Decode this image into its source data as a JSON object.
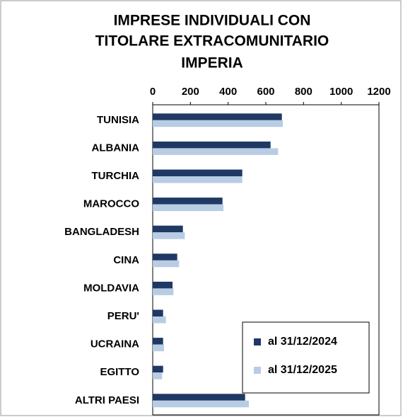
{
  "chart_data": {
    "type": "bar",
    "orientation": "horizontal",
    "title": [
      "IMPRESE INDIVIDUALI CON",
      "TITOLARE  EXTRACOMUNITARIO",
      "IMPERIA"
    ],
    "categories": [
      "TUNISIA",
      "ALBANIA",
      "TURCHIA",
      "MAROCCO",
      "BANGLADESH",
      "CINA",
      "MOLDAVIA",
      "PERU'",
      "UCRAINA",
      "EGITTO",
      "ALTRI PAESI"
    ],
    "series": [
      {
        "name": "al 31/12/2024",
        "color": "#1f3864",
        "values": [
          685,
          625,
          475,
          370,
          160,
          130,
          105,
          55,
          55,
          55,
          490
        ]
      },
      {
        "name": "al 31/12/2025",
        "color": "#b8cce4",
        "values": [
          690,
          665,
          475,
          375,
          170,
          140,
          110,
          70,
          60,
          50,
          510
        ]
      }
    ],
    "xlim": [
      0,
      1200
    ],
    "xticks": [
      0,
      200,
      400,
      600,
      800,
      1000,
      1200
    ],
    "grid": false,
    "legend": "bottom-right"
  }
}
